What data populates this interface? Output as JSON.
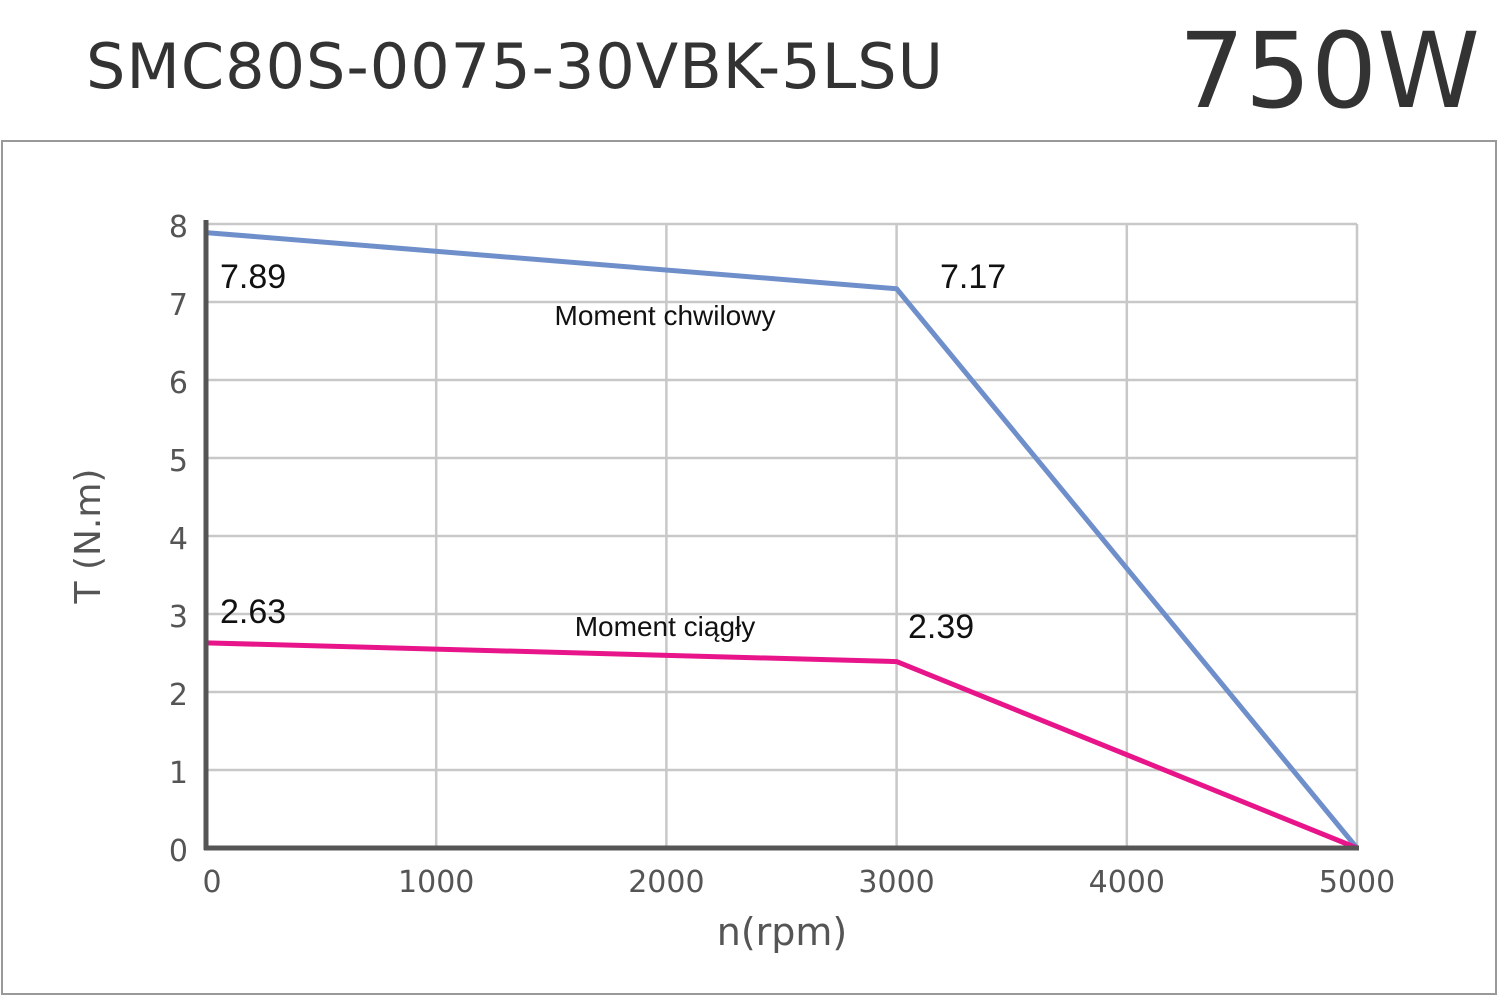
{
  "header": {
    "model": "SMC80S-0075-30VBK-5LSU",
    "power": "750W"
  },
  "colors": {
    "peak": "#6f8fcb",
    "continuous": "#e8158a",
    "grid": "#c8c8c8",
    "axis": "#555555",
    "text": "#555555"
  },
  "chart_data": {
    "type": "line",
    "xlabel": "n(rpm)",
    "ylabel": "T (N.m)",
    "xlim": [
      0,
      5000
    ],
    "ylim": [
      0,
      8
    ],
    "x_ticks": [
      "0",
      "1000",
      "2000",
      "3000",
      "4000",
      "5000"
    ],
    "y_ticks": [
      "0",
      "1",
      "2",
      "3",
      "4",
      "5",
      "6",
      "7",
      "8"
    ],
    "grid": true,
    "series": [
      {
        "name": "Moment chwilowy",
        "color": "#6f8fcb",
        "points": [
          [
            0,
            7.89
          ],
          [
            3000,
            7.17
          ],
          [
            5000,
            0
          ]
        ],
        "labels": [
          "7.89",
          "7.17"
        ]
      },
      {
        "name": "Moment ciągły",
        "color": "#e8158a",
        "points": [
          [
            0,
            2.63
          ],
          [
            3000,
            2.39
          ],
          [
            5000,
            0
          ]
        ],
        "labels": [
          "2.63",
          "2.39"
        ]
      }
    ]
  }
}
